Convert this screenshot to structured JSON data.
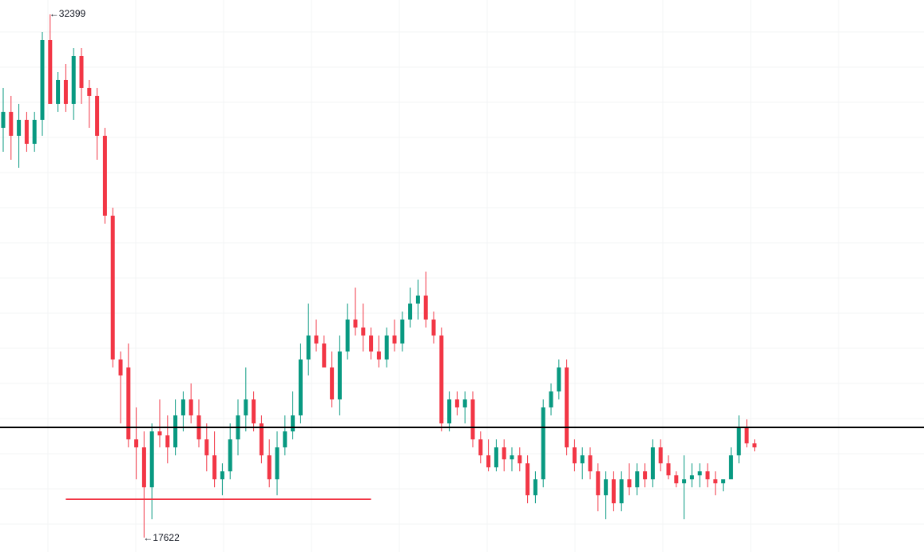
{
  "chart_data": {
    "type": "candlestick",
    "up_color": "#089981",
    "down_color": "#f23645",
    "candles": [
      [
        29195,
        30323,
        28518,
        29646
      ],
      [
        29646,
        30098,
        28293,
        28970
      ],
      [
        28970,
        29872,
        28067,
        29421
      ],
      [
        29421,
        29646,
        28518,
        28744
      ],
      [
        28744,
        29646,
        28518,
        29421
      ],
      [
        29421,
        31903,
        28970,
        31677
      ],
      [
        31677,
        32399,
        29872,
        29872
      ],
      [
        29872,
        30775,
        29646,
        30549
      ],
      [
        30549,
        31000,
        29646,
        29872
      ],
      [
        29872,
        31451,
        29421,
        31226
      ],
      [
        31226,
        31451,
        29872,
        30323
      ],
      [
        30323,
        30549,
        29195,
        30098
      ],
      [
        30098,
        30323,
        28293,
        28970
      ],
      [
        28970,
        29195,
        26488,
        26714
      ],
      [
        26714,
        26939,
        22427,
        22653
      ],
      [
        22653,
        22878,
        20848,
        22202
      ],
      [
        22427,
        23104,
        20171,
        20397
      ],
      [
        20397,
        21299,
        19269,
        20171
      ],
      [
        20171,
        20622,
        17622,
        19043
      ],
      [
        19043,
        20848,
        18141,
        20622
      ],
      [
        20622,
        21525,
        20171,
        20510
      ],
      [
        20510,
        21074,
        19720,
        20171
      ],
      [
        20171,
        21525,
        19946,
        21074
      ],
      [
        21074,
        21750,
        20622,
        21525
      ],
      [
        21525,
        21976,
        20848,
        21074
      ],
      [
        21074,
        21525,
        20171,
        20397
      ],
      [
        20397,
        20848,
        19494,
        19946
      ],
      [
        19946,
        20622,
        19043,
        19269
      ],
      [
        19269,
        19720,
        18818,
        19494
      ],
      [
        19494,
        20848,
        19269,
        20397
      ],
      [
        20397,
        21525,
        19946,
        21074
      ],
      [
        21074,
        22427,
        20622,
        21525
      ],
      [
        21525,
        21750,
        20622,
        20848
      ],
      [
        20848,
        21074,
        19720,
        19946
      ],
      [
        19946,
        20397,
        19043,
        19269
      ],
      [
        19269,
        20622,
        18818,
        20171
      ],
      [
        20171,
        21074,
        19946,
        20622
      ],
      [
        20622,
        21750,
        20397,
        21074
      ],
      [
        21074,
        23104,
        20848,
        22653
      ],
      [
        22653,
        24232,
        22202,
        23330
      ],
      [
        23330,
        23781,
        22878,
        23104
      ],
      [
        23104,
        23330,
        22427,
        22427
      ],
      [
        22427,
        22878,
        21299,
        21525
      ],
      [
        21525,
        23330,
        21074,
        22878
      ],
      [
        22878,
        24232,
        22653,
        23781
      ],
      [
        23781,
        24683,
        23330,
        23555
      ],
      [
        23555,
        24232,
        22878,
        23330
      ],
      [
        23330,
        23555,
        22653,
        22878
      ],
      [
        22878,
        23330,
        22427,
        22653
      ],
      [
        22653,
        23555,
        22427,
        23330
      ],
      [
        23330,
        23781,
        22878,
        23104
      ],
      [
        23104,
        24006,
        22878,
        23781
      ],
      [
        23781,
        24683,
        23555,
        24232
      ],
      [
        24232,
        24909,
        23781,
        24458
      ],
      [
        24458,
        25135,
        23555,
        23781
      ],
      [
        23781,
        24006,
        23104,
        23330
      ],
      [
        23330,
        23555,
        20622,
        20848
      ],
      [
        20848,
        21750,
        20622,
        21525
      ],
      [
        21525,
        21750,
        21074,
        21299
      ],
      [
        21299,
        21750,
        20848,
        21525
      ],
      [
        21525,
        21750,
        20171,
        20397
      ],
      [
        20397,
        20622,
        19720,
        19946
      ],
      [
        19946,
        20397,
        19494,
        19607
      ],
      [
        19607,
        20397,
        19494,
        20171
      ],
      [
        20171,
        20397,
        19494,
        19833
      ],
      [
        19833,
        20171,
        19494,
        19946
      ],
      [
        19946,
        20171,
        19494,
        19720
      ],
      [
        19720,
        19946,
        18592,
        18818
      ],
      [
        18818,
        19494,
        18592,
        19269
      ],
      [
        19269,
        21525,
        19043,
        21299
      ],
      [
        21299,
        21976,
        21074,
        21750
      ],
      [
        21750,
        22653,
        21525,
        22427
      ],
      [
        22427,
        22653,
        19946,
        20171
      ],
      [
        20171,
        20397,
        19494,
        19720
      ],
      [
        19720,
        20171,
        19269,
        19946
      ],
      [
        19946,
        20171,
        19269,
        19494
      ],
      [
        19494,
        19720,
        18366,
        18818
      ],
      [
        18818,
        19494,
        18141,
        19269
      ],
      [
        19269,
        19494,
        18366,
        18592
      ],
      [
        18592,
        19494,
        18366,
        19269
      ],
      [
        19269,
        19720,
        18818,
        19043
      ],
      [
        19043,
        19720,
        18818,
        19494
      ],
      [
        19494,
        19720,
        19043,
        19269
      ],
      [
        19269,
        20397,
        19043,
        20171
      ],
      [
        20171,
        20397,
        19494,
        19720
      ],
      [
        19720,
        19946,
        19269,
        19381
      ],
      [
        19381,
        19494,
        19043,
        19156
      ],
      [
        19156,
        19946,
        18141,
        19269
      ],
      [
        19269,
        19720,
        19043,
        19381
      ],
      [
        19381,
        19720,
        19043,
        19494
      ],
      [
        19494,
        19720,
        19043,
        19269
      ],
      [
        19269,
        19494,
        18818,
        19156
      ],
      [
        19156,
        19269,
        18930,
        19269
      ],
      [
        19269,
        20171,
        19269,
        19946
      ],
      [
        19946,
        21074,
        19720,
        20735
      ],
      [
        20735,
        20961,
        20171,
        20284
      ],
      [
        20284,
        20397,
        20058,
        20171
      ]
    ],
    "lines": [
      {
        "value": 20735,
        "color": "#000000"
      },
      {
        "value": 18705,
        "color": "#f23645",
        "from": 8,
        "to": 47
      }
    ]
  }
}
